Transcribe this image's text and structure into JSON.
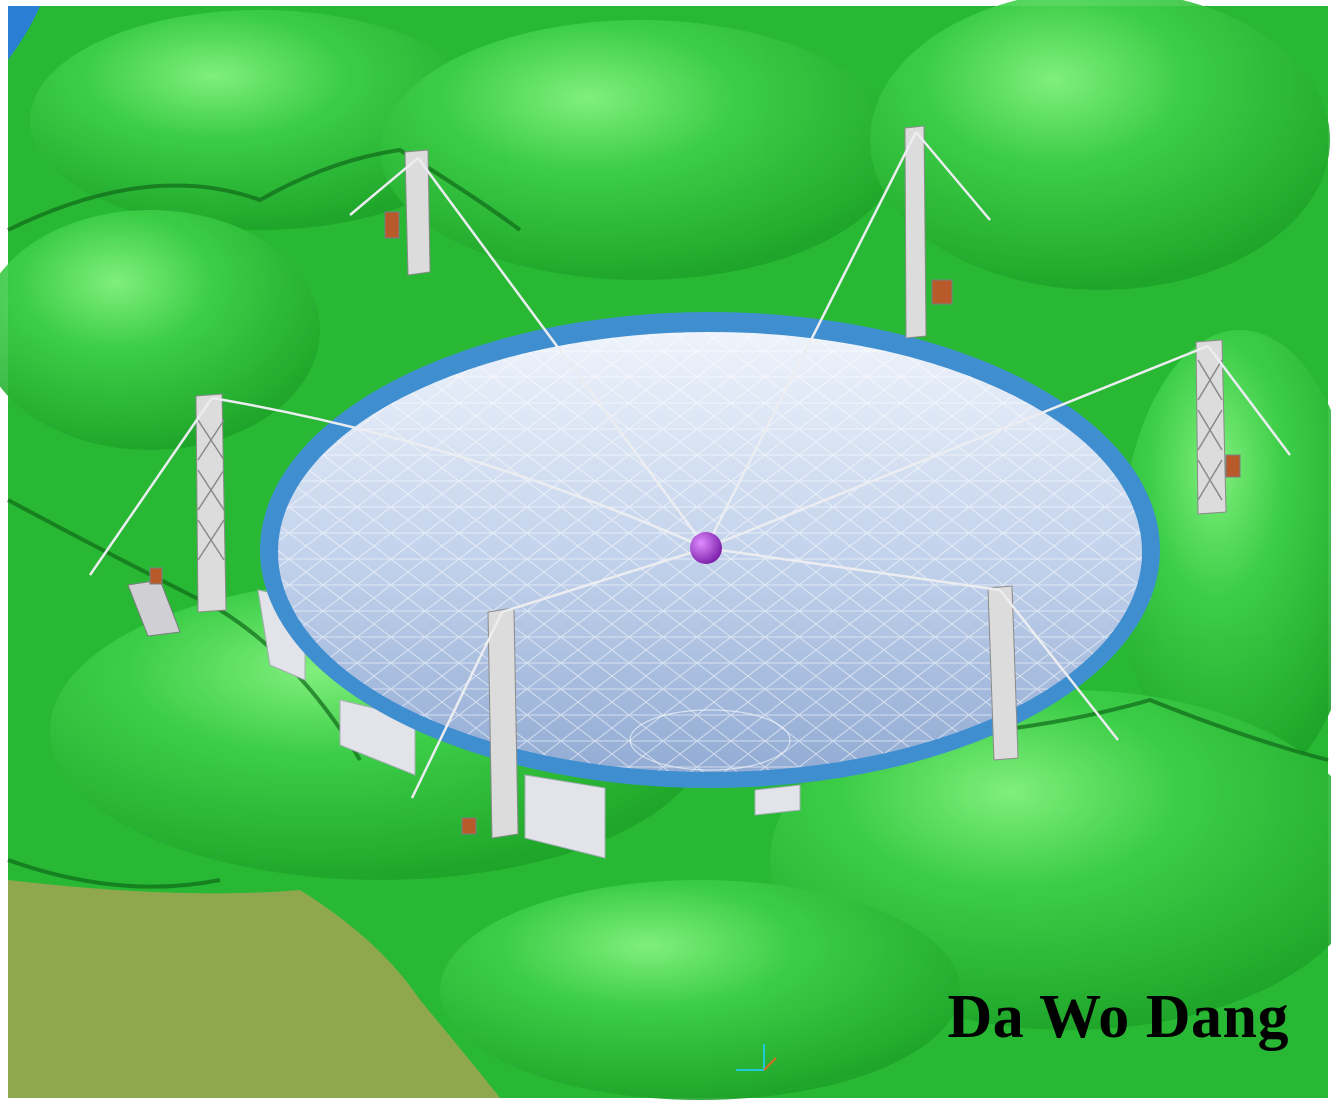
{
  "caption": {
    "text": "Da Wo Dang"
  },
  "colors": {
    "terrain": "#2fbf3a",
    "terrain_light": "#7ff07a",
    "terrain_dark": "#128a1c",
    "ground_plane": "#8fa84f",
    "dish_surface": "#b9cdea",
    "dish_rim": "#3f8fd0",
    "receiver": "#9a2ec4",
    "tower": "#d8d8d8",
    "sky_corner": "#2a7fd4"
  },
  "icons": [
    "axis-gizmo-icon"
  ]
}
